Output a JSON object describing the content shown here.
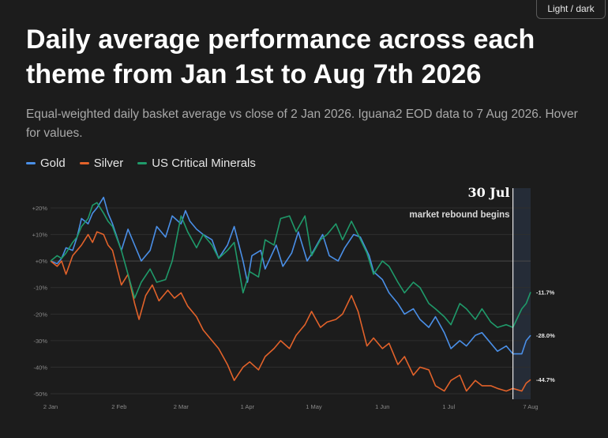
{
  "toggle_label": "Light / dark",
  "title": "Daily average performance across each theme from Jan 1st to Aug 7th 2026",
  "subtitle": "Equal-weighted daily basket average vs close of 2 Jan 2026. Iguana2 EOD data to 7 Aug 2026. Hover for values.",
  "chart_data": {
    "type": "line",
    "title": "Daily average performance across each theme from Jan 1st to Aug 7th 2026",
    "subtitle": "Equal-weighted daily basket average vs close of 2 Jan 2026. Iguana2 EOD data to 7 Aug 2026. Hover for values.",
    "xlabel": "",
    "ylabel": "",
    "y_unit": "%",
    "ylim": [
      -52,
      26
    ],
    "y_ticks": [
      20,
      10,
      0,
      -10,
      -20,
      -30,
      -40,
      -50
    ],
    "y_tick_labels": [
      "+20%",
      "+10%",
      "+0%",
      "-10%",
      "-20%",
      "-30%",
      "-40%",
      "-50%"
    ],
    "x_ticks": [
      "2026-01-02",
      "2026-02-02",
      "2026-03-02",
      "2026-04-01",
      "2026-05-01",
      "2026-06-01",
      "2026-07-01",
      "2026-08-07"
    ],
    "x_tick_labels": [
      "2 Jan",
      "2 Feb",
      "2 Mar",
      "1 Apr",
      "1 May",
      "1 Jun",
      "1 Jul",
      "7 Aug"
    ],
    "grid": true,
    "legend_position": "top-left",
    "annotation": {
      "date": "2026-07-30",
      "label": "30 Jul",
      "text": "market rebound begins"
    },
    "series": [
      {
        "name": "Gold",
        "color": "#4a8fe7",
        "end_label": "-28.0%",
        "points": [
          [
            "2026-01-02",
            0
          ],
          [
            "2026-01-05",
            -1
          ],
          [
            "2026-01-07",
            1
          ],
          [
            "2026-01-09",
            5
          ],
          [
            "2026-01-12",
            4
          ],
          [
            "2026-01-14",
            9
          ],
          [
            "2026-01-16",
            16
          ],
          [
            "2026-01-19",
            14
          ],
          [
            "2026-01-21",
            18
          ],
          [
            "2026-01-23",
            20
          ],
          [
            "2026-01-26",
            24
          ],
          [
            "2026-01-28",
            18
          ],
          [
            "2026-01-30",
            14
          ],
          [
            "2026-02-03",
            4
          ],
          [
            "2026-02-06",
            12
          ],
          [
            "2026-02-09",
            6
          ],
          [
            "2026-02-12",
            0
          ],
          [
            "2026-02-16",
            4
          ],
          [
            "2026-02-19",
            13
          ],
          [
            "2026-02-23",
            9
          ],
          [
            "2026-02-26",
            17
          ],
          [
            "2026-03-02",
            14
          ],
          [
            "2026-03-04",
            19
          ],
          [
            "2026-03-06",
            15
          ],
          [
            "2026-03-09",
            12
          ],
          [
            "2026-03-12",
            10
          ],
          [
            "2026-03-16",
            8
          ],
          [
            "2026-03-19",
            1
          ],
          [
            "2026-03-23",
            6
          ],
          [
            "2026-03-26",
            13
          ],
          [
            "2026-03-30",
            0
          ],
          [
            "2026-04-01",
            -8
          ],
          [
            "2026-04-03",
            2
          ],
          [
            "2026-04-07",
            4
          ],
          [
            "2026-04-09",
            -3
          ],
          [
            "2026-04-14",
            6
          ],
          [
            "2026-04-17",
            -2
          ],
          [
            "2026-04-21",
            3
          ],
          [
            "2026-04-24",
            11
          ],
          [
            "2026-04-28",
            0
          ],
          [
            "2026-05-01",
            4
          ],
          [
            "2026-05-05",
            10
          ],
          [
            "2026-05-08",
            2
          ],
          [
            "2026-05-12",
            0
          ],
          [
            "2026-05-15",
            5
          ],
          [
            "2026-05-19",
            10
          ],
          [
            "2026-05-22",
            9
          ],
          [
            "2026-05-26",
            2
          ],
          [
            "2026-05-28",
            -4
          ],
          [
            "2026-06-01",
            -7
          ],
          [
            "2026-06-04",
            -12
          ],
          [
            "2026-06-08",
            -16
          ],
          [
            "2026-06-11",
            -20
          ],
          [
            "2026-06-15",
            -18
          ],
          [
            "2026-06-18",
            -22
          ],
          [
            "2026-06-22",
            -25
          ],
          [
            "2026-06-25",
            -21
          ],
          [
            "2026-06-29",
            -27
          ],
          [
            "2026-07-02",
            -33
          ],
          [
            "2026-07-06",
            -30
          ],
          [
            "2026-07-09",
            -32
          ],
          [
            "2026-07-13",
            -28
          ],
          [
            "2026-07-16",
            -27
          ],
          [
            "2026-07-20",
            -31
          ],
          [
            "2026-07-23",
            -34
          ],
          [
            "2026-07-27",
            -32
          ],
          [
            "2026-07-30",
            -35
          ],
          [
            "2026-08-03",
            -35
          ],
          [
            "2026-08-05",
            -30
          ],
          [
            "2026-08-07",
            -28
          ]
        ]
      },
      {
        "name": "Silver",
        "color": "#e2622a",
        "end_label": "-44.7%",
        "points": [
          [
            "2026-01-02",
            0
          ],
          [
            "2026-01-05",
            -2
          ],
          [
            "2026-01-07",
            0
          ],
          [
            "2026-01-09",
            -5
          ],
          [
            "2026-01-12",
            2
          ],
          [
            "2026-01-14",
            4
          ],
          [
            "2026-01-16",
            6
          ],
          [
            "2026-01-19",
            10
          ],
          [
            "2026-01-21",
            7
          ],
          [
            "2026-01-23",
            11
          ],
          [
            "2026-01-26",
            10
          ],
          [
            "2026-01-28",
            6
          ],
          [
            "2026-01-30",
            4
          ],
          [
            "2026-02-03",
            -9
          ],
          [
            "2026-02-06",
            -5
          ],
          [
            "2026-02-09",
            -16
          ],
          [
            "2026-02-11",
            -22
          ],
          [
            "2026-02-14",
            -13
          ],
          [
            "2026-02-17",
            -9
          ],
          [
            "2026-02-20",
            -15
          ],
          [
            "2026-02-24",
            -11
          ],
          [
            "2026-02-27",
            -14
          ],
          [
            "2026-03-02",
            -12
          ],
          [
            "2026-03-05",
            -17
          ],
          [
            "2026-03-09",
            -21
          ],
          [
            "2026-03-12",
            -26
          ],
          [
            "2026-03-16",
            -30
          ],
          [
            "2026-03-19",
            -33
          ],
          [
            "2026-03-23",
            -39
          ],
          [
            "2026-03-26",
            -45
          ],
          [
            "2026-03-30",
            -40
          ],
          [
            "2026-04-02",
            -38
          ],
          [
            "2026-04-06",
            -41
          ],
          [
            "2026-04-09",
            -36
          ],
          [
            "2026-04-13",
            -33
          ],
          [
            "2026-04-16",
            -30
          ],
          [
            "2026-04-20",
            -33
          ],
          [
            "2026-04-23",
            -28
          ],
          [
            "2026-04-27",
            -24
          ],
          [
            "2026-04-30",
            -19
          ],
          [
            "2026-05-04",
            -25
          ],
          [
            "2026-05-07",
            -23
          ],
          [
            "2026-05-11",
            -22
          ],
          [
            "2026-05-14",
            -20
          ],
          [
            "2026-05-18",
            -13
          ],
          [
            "2026-05-21",
            -19
          ],
          [
            "2026-05-25",
            -32
          ],
          [
            "2026-05-28",
            -29
          ],
          [
            "2026-06-01",
            -33
          ],
          [
            "2026-06-04",
            -31
          ],
          [
            "2026-06-08",
            -39
          ],
          [
            "2026-06-11",
            -36
          ],
          [
            "2026-06-15",
            -43
          ],
          [
            "2026-06-18",
            -40
          ],
          [
            "2026-06-22",
            -41
          ],
          [
            "2026-06-25",
            -47
          ],
          [
            "2026-06-29",
            -49
          ],
          [
            "2026-07-02",
            -45
          ],
          [
            "2026-07-06",
            -43
          ],
          [
            "2026-07-09",
            -49
          ],
          [
            "2026-07-13",
            -45
          ],
          [
            "2026-07-16",
            -47
          ],
          [
            "2026-07-20",
            -47
          ],
          [
            "2026-07-23",
            -48
          ],
          [
            "2026-07-27",
            -49
          ],
          [
            "2026-07-30",
            -48
          ],
          [
            "2026-08-03",
            -49
          ],
          [
            "2026-08-05",
            -46
          ],
          [
            "2026-08-07",
            -44.7
          ]
        ]
      },
      {
        "name": "US Critical Minerals",
        "color": "#1f9a6a",
        "end_label": "-11.7%",
        "points": [
          [
            "2026-01-02",
            0
          ],
          [
            "2026-01-05",
            2
          ],
          [
            "2026-01-07",
            1
          ],
          [
            "2026-01-09",
            3
          ],
          [
            "2026-01-12",
            7
          ],
          [
            "2026-01-14",
            9
          ],
          [
            "2026-01-16",
            13
          ],
          [
            "2026-01-19",
            16
          ],
          [
            "2026-01-21",
            21
          ],
          [
            "2026-01-23",
            22
          ],
          [
            "2026-01-26",
            18
          ],
          [
            "2026-01-28",
            15
          ],
          [
            "2026-01-30",
            13
          ],
          [
            "2026-02-03",
            4
          ],
          [
            "2026-02-06",
            -5
          ],
          [
            "2026-02-09",
            -14
          ],
          [
            "2026-02-12",
            -8
          ],
          [
            "2026-02-16",
            -3
          ],
          [
            "2026-02-19",
            -8
          ],
          [
            "2026-02-23",
            -7
          ],
          [
            "2026-02-26",
            0
          ],
          [
            "2026-03-02",
            17
          ],
          [
            "2026-03-05",
            11
          ],
          [
            "2026-03-09",
            5
          ],
          [
            "2026-03-12",
            10
          ],
          [
            "2026-03-16",
            6
          ],
          [
            "2026-03-19",
            1
          ],
          [
            "2026-03-23",
            4
          ],
          [
            "2026-03-26",
            7
          ],
          [
            "2026-03-30",
            -12
          ],
          [
            "2026-04-02",
            -4
          ],
          [
            "2026-04-06",
            -6
          ],
          [
            "2026-04-09",
            8
          ],
          [
            "2026-04-13",
            6
          ],
          [
            "2026-04-16",
            16
          ],
          [
            "2026-04-20",
            17
          ],
          [
            "2026-04-23",
            11
          ],
          [
            "2026-04-27",
            17
          ],
          [
            "2026-04-30",
            2
          ],
          [
            "2026-05-04",
            8
          ],
          [
            "2026-05-07",
            10
          ],
          [
            "2026-05-11",
            14
          ],
          [
            "2026-05-14",
            8
          ],
          [
            "2026-05-18",
            15
          ],
          [
            "2026-05-21",
            10
          ],
          [
            "2026-05-25",
            3
          ],
          [
            "2026-05-28",
            -5
          ],
          [
            "2026-06-01",
            0
          ],
          [
            "2026-06-04",
            -2
          ],
          [
            "2026-06-08",
            -8
          ],
          [
            "2026-06-11",
            -12
          ],
          [
            "2026-06-15",
            -8
          ],
          [
            "2026-06-18",
            -10
          ],
          [
            "2026-06-22",
            -16
          ],
          [
            "2026-06-25",
            -18
          ],
          [
            "2026-06-29",
            -21
          ],
          [
            "2026-07-02",
            -24
          ],
          [
            "2026-07-06",
            -16
          ],
          [
            "2026-07-09",
            -18
          ],
          [
            "2026-07-13",
            -22
          ],
          [
            "2026-07-16",
            -18
          ],
          [
            "2026-07-20",
            -23
          ],
          [
            "2026-07-23",
            -25
          ],
          [
            "2026-07-27",
            -24
          ],
          [
            "2026-07-30",
            -25
          ],
          [
            "2026-08-03",
            -18
          ],
          [
            "2026-08-05",
            -16
          ],
          [
            "2026-08-07",
            -11.7
          ]
        ]
      }
    ]
  }
}
